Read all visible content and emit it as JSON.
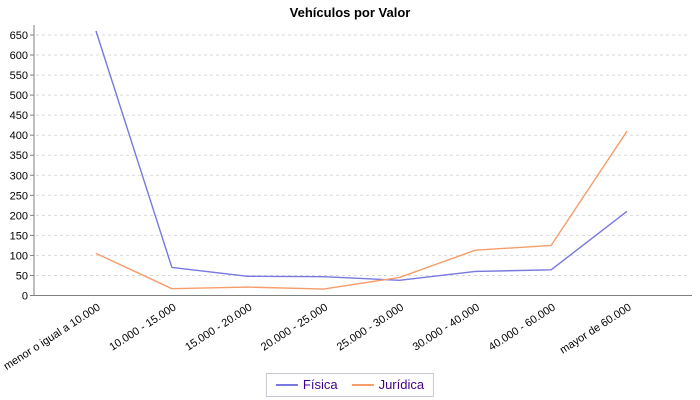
{
  "chart_data": {
    "type": "line",
    "title": "Vehículos por Valor",
    "categories": [
      "menor o igual a 10.000",
      "10.000 - 15.000",
      "15.000 - 20.000",
      "20.000 - 25.000",
      "25.000 - 30.000",
      "30.000 - 40.000",
      "40.000 - 60.000",
      "mayor de 60.000"
    ],
    "series": [
      {
        "name": "Física",
        "color": "#7878df",
        "values": [
          660,
          70,
          48,
          47,
          38,
          60,
          64,
          210
        ]
      },
      {
        "name": "Jurídica",
        "color": "#f59e6b",
        "values": [
          105,
          17,
          21,
          16,
          45,
          113,
          125,
          410
        ]
      }
    ],
    "ylim": [
      0,
      650
    ],
    "yticks": [
      0,
      50,
      100,
      150,
      200,
      250,
      300,
      350,
      400,
      450,
      500,
      550,
      600,
      650
    ],
    "grid": "horizontal-dashed",
    "legend_position": "bottom-center",
    "xlabel": "",
    "ylabel": ""
  },
  "colors": {
    "axis": "#808080",
    "grid": "#d9d9d9",
    "tick_label": "#000000",
    "legend_text": "#420087",
    "legend_border": "#c6c9d4",
    "background": "#ffffff"
  }
}
